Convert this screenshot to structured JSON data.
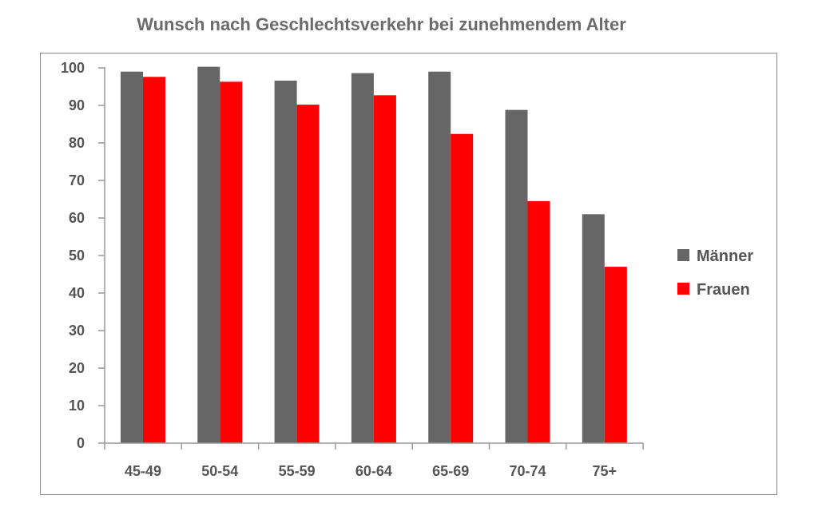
{
  "chart_data": {
    "type": "bar",
    "title": "Wunsch nach Geschlechtsverkehr bei zunehmendem Alter",
    "categories": [
      "45-49",
      "50-54",
      "55-59",
      "60-64",
      "65-69",
      "70-74",
      "75+"
    ],
    "series": [
      {
        "name": "Männer",
        "color": "#666666",
        "values": [
          99,
          100.3,
          96.6,
          98.6,
          99,
          88.8,
          61
        ]
      },
      {
        "name": "Frauen",
        "color": "#ff0000",
        "values": [
          97.6,
          96.3,
          90.2,
          92.7,
          82.4,
          64.5,
          47
        ]
      }
    ],
    "yticks": [
      "0",
      "10",
      "20",
      "30",
      "40",
      "50",
      "60",
      "70",
      "80",
      "90",
      "100"
    ],
    "ylim": [
      0,
      100
    ],
    "grid": false,
    "legend_position": "right"
  }
}
